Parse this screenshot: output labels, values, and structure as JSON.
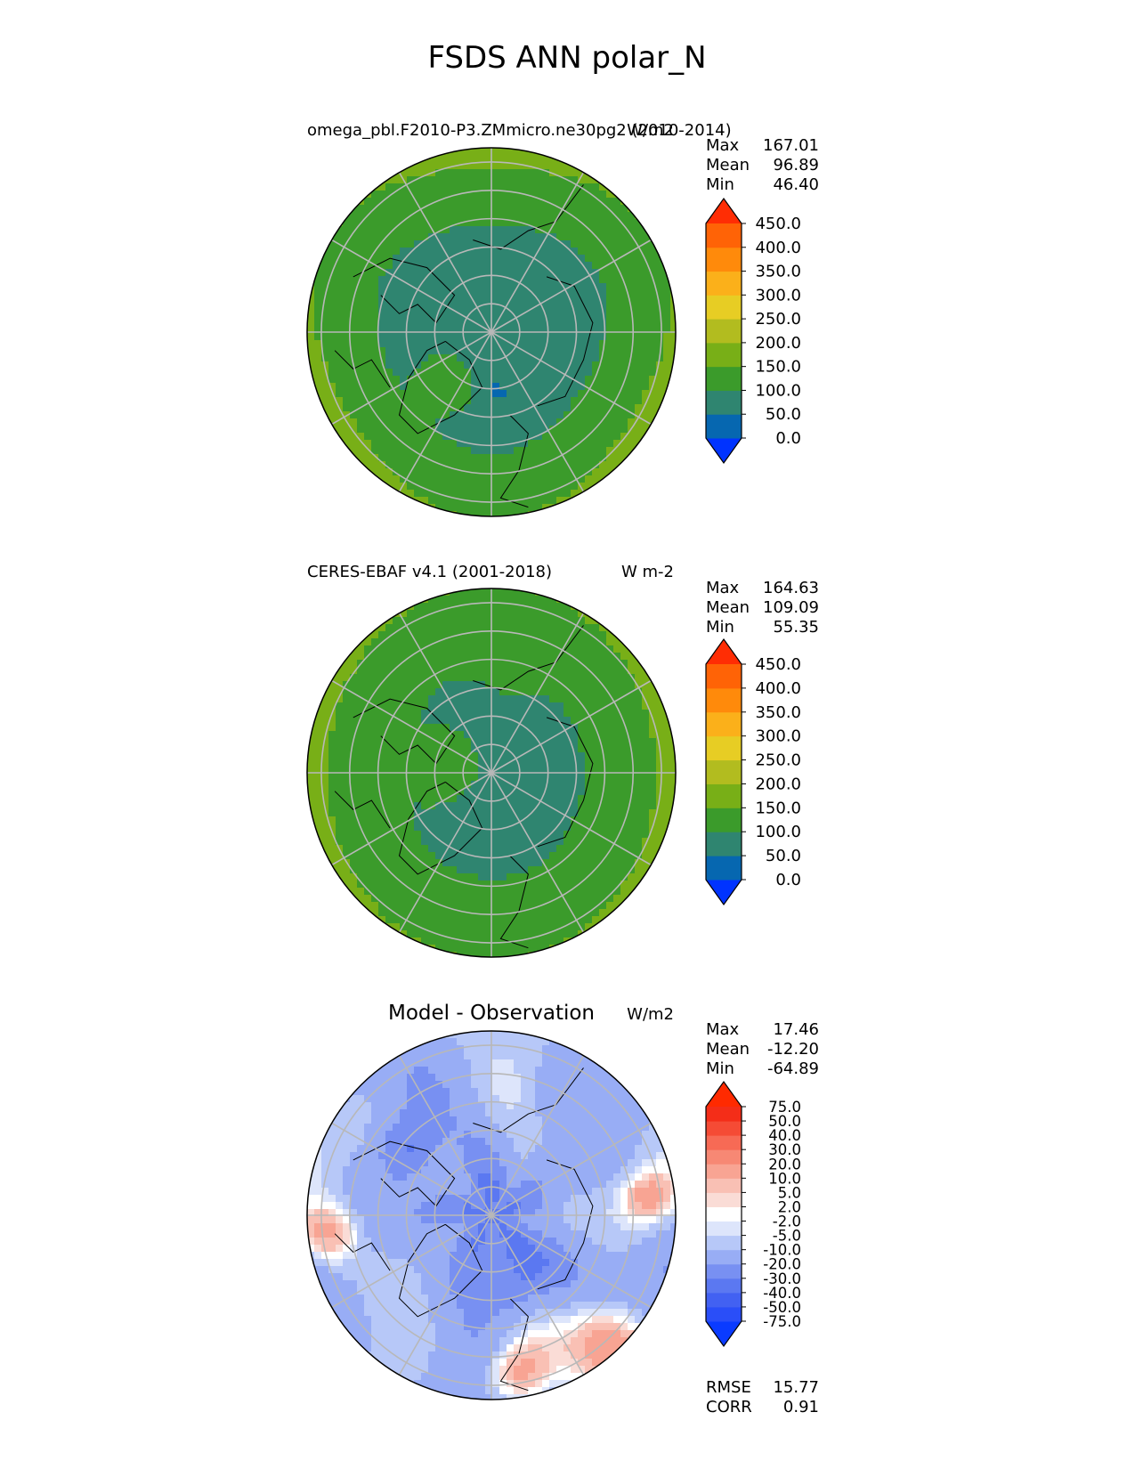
{
  "figure": {
    "title": "FSDS ANN polar_N"
  },
  "chart_data": [
    {
      "type": "heatmap",
      "projection": "north polar stereographic",
      "title_left": "omega_pbl.F2010-P3.ZMmicro.ne30pg2 (2010-2014)",
      "title_right": "W/m2",
      "stats": {
        "labels": [
          "Max",
          "Mean",
          "Min"
        ],
        "values": [
          "167.01",
          "96.89",
          "46.40"
        ]
      },
      "colorbar": {
        "ticks": [
          "0.0",
          "50.0",
          "100.0",
          "150.0",
          "200.0",
          "250.0",
          "300.0",
          "350.0",
          "400.0",
          "450.0"
        ],
        "levels": [
          0,
          50,
          100,
          150,
          200,
          250,
          300,
          350,
          400,
          450
        ],
        "extend": "both",
        "colors": [
          "#0033ff",
          "#0667b0",
          "#2f8570",
          "#3b9b2b",
          "#78af17",
          "#b2bc1f",
          "#e7cd24",
          "#fbb01a",
          "#ff8a0b",
          "#ff6306",
          "#ff2d04"
        ]
      },
      "field": {
        "pole_value": 90,
        "min_region_value": 46.4,
        "atlantic_sector_value": 140,
        "pacific_sector_value": 130,
        "outer_ring_value": 155
      }
    },
    {
      "type": "heatmap",
      "projection": "north polar stereographic",
      "title_left": "CERES-EBAF v4.1 (2001-2018)",
      "title_right": "W m-2",
      "stats": {
        "labels": [
          "Max",
          "Mean",
          "Min"
        ],
        "values": [
          "164.63",
          "109.09",
          "55.35"
        ]
      },
      "colorbar": {
        "ticks": [
          "0.0",
          "50.0",
          "100.0",
          "150.0",
          "200.0",
          "250.0",
          "300.0",
          "350.0",
          "400.0",
          "450.0"
        ],
        "levels": [
          0,
          50,
          100,
          150,
          200,
          250,
          300,
          350,
          400,
          450
        ],
        "extend": "both",
        "colors": [
          "#0033ff",
          "#0667b0",
          "#2f8570",
          "#3b9b2b",
          "#78af17",
          "#b2bc1f",
          "#e7cd24",
          "#fbb01a",
          "#ff8a0b",
          "#ff6306",
          "#ff2d04"
        ]
      },
      "field": {
        "pole_value": 95,
        "arctic_ocean_value": 90,
        "land_value": 120,
        "outer_ring_value": 150
      }
    },
    {
      "type": "heatmap",
      "projection": "north polar stereographic",
      "title_center": "Model - Observation",
      "title_right": "W/m2",
      "stats": {
        "labels": [
          "Max",
          "Mean",
          "Min"
        ],
        "values": [
          "17.46",
          "-12.20",
          "-64.89"
        ]
      },
      "colorbar": {
        "ticks": [
          "-75.0",
          "-50.0",
          "-40.0",
          "-30.0",
          "-20.0",
          "-10.0",
          "-5.0",
          "-2.0",
          "2.0",
          "5.0",
          "10.0",
          "20.0",
          "30.0",
          "40.0",
          "50.0",
          "75.0"
        ],
        "levels": [
          -75,
          -50,
          -40,
          -30,
          -20,
          -10,
          -5,
          -2,
          2,
          5,
          10,
          20,
          30,
          40,
          50,
          75
        ],
        "extend": "both",
        "colors": [
          "#0a3bff",
          "#2a4ef8",
          "#4261f2",
          "#5b78f1",
          "#7890f2",
          "#98adf5",
          "#b7c8f8",
          "#dde5fb",
          "#ffffff",
          "#fadcd6",
          "#f9c0b4",
          "#f8a493",
          "#f78874",
          "#f76a55",
          "#f54b35",
          "#f42d18",
          "#ff2a00"
        ]
      },
      "field": {
        "pole_value": -30,
        "general_value": -12,
        "atlantic_positive_value": 10,
        "min_region_value": -64.89
      },
      "metrics": {
        "labels": [
          "RMSE",
          "CORR"
        ],
        "values": [
          "15.77",
          "0.91"
        ]
      }
    }
  ]
}
